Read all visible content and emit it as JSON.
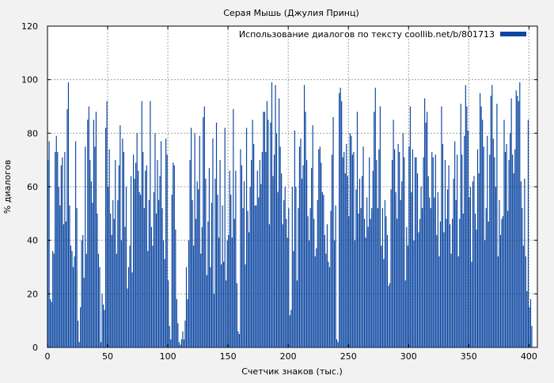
{
  "chart_data": {
    "type": "bar",
    "title": "Серая Мышь (Джулия Принц)",
    "xlabel": "Счетчик знаков (тыс.)",
    "ylabel": "% диалогов",
    "xlim": [
      0,
      407
    ],
    "ylim": [
      0,
      120
    ],
    "xticks": [
      0,
      50,
      100,
      150,
      200,
      250,
      300,
      350,
      400
    ],
    "yticks": [
      0,
      20,
      40,
      60,
      80,
      100,
      120
    ],
    "grid": true,
    "legend_position": "top-right",
    "bar_color": "#0d47a1",
    "series": [
      {
        "name": "Использование диалогов по тексту coollib.net/b/801713",
        "x_step": 1,
        "values": [
          70,
          77,
          18,
          17,
          36,
          35,
          73,
          79,
          73,
          60,
          53,
          68,
          71,
          46,
          73,
          47,
          89,
          99,
          53,
          38,
          36,
          30,
          34,
          77,
          52,
          10,
          2,
          15,
          40,
          42,
          26,
          75,
          35,
          85,
          90,
          70,
          62,
          54,
          85,
          75,
          88,
          50,
          35,
          30,
          2,
          20,
          16,
          14,
          82,
          92,
          60,
          74,
          50,
          42,
          55,
          48,
          70,
          35,
          55,
          68,
          83,
          40,
          78,
          73,
          45,
          60,
          22,
          30,
          38,
          64,
          28,
          72,
          63,
          69,
          80,
          66,
          58,
          57,
          92,
          73,
          52,
          66,
          68,
          36,
          55,
          92,
          45,
          38,
          58,
          80,
          50,
          70,
          55,
          64,
          77,
          52,
          40,
          33,
          78,
          72,
          25,
          8,
          3,
          57,
          69,
          68,
          44,
          18,
          9,
          2,
          1,
          3,
          6,
          3,
          10,
          30,
          18,
          40,
          70,
          82,
          55,
          38,
          80,
          48,
          62,
          59,
          79,
          35,
          45,
          86,
          90,
          63,
          27,
          47,
          67,
          30,
          54,
          78,
          20,
          63,
          84,
          57,
          41,
          70,
          31,
          53,
          32,
          82,
          25,
          40,
          42,
          66,
          57,
          41,
          89,
          48,
          66,
          24,
          6,
          5,
          74,
          68,
          52,
          62,
          31,
          82,
          51,
          43,
          60,
          70,
          85,
          76,
          53,
          53,
          66,
          56,
          70,
          61,
          73,
          88,
          88,
          73,
          92,
          85,
          46,
          84,
          99,
          64,
          72,
          98,
          80,
          58,
          93,
          75,
          65,
          46,
          55,
          60,
          48,
          41,
          52,
          12,
          14,
          60,
          36,
          81,
          60,
          25,
          52,
          75,
          78,
          63,
          68,
          98,
          88,
          70,
          49,
          40,
          52,
          67,
          83,
          48,
          34,
          37,
          55,
          74,
          75,
          69,
          58,
          57,
          42,
          35,
          46,
          32,
          30,
          51,
          72,
          86,
          40,
          53,
          3,
          2,
          95,
          97,
          92,
          71,
          73,
          65,
          76,
          64,
          49,
          80,
          79,
          72,
          73,
          40,
          59,
          88,
          50,
          63,
          52,
          64,
          75,
          48,
          41,
          56,
          45,
          71,
          48,
          52,
          66,
          88,
          97,
          70,
          52,
          74,
          90,
          38,
          52,
          33,
          55,
          49,
          42,
          23,
          24,
          59,
          70,
          85,
          74,
          58,
          48,
          76,
          73,
          55,
          62,
          80,
          71,
          25,
          45,
          38,
          75,
          90,
          58,
          74,
          40,
          71,
          71,
          65,
          43,
          48,
          60,
          52,
          71,
          93,
          84,
          88,
          64,
          56,
          52,
          73,
          71,
          56,
          72,
          42,
          58,
          34,
          47,
          90,
          76,
          43,
          70,
          48,
          59,
          68,
          46,
          35,
          48,
          63,
          77,
          55,
          72,
          34,
          48,
          91,
          72,
          50,
          79,
          98,
          90,
          81,
          56,
          60,
          32,
          62,
          64,
          50,
          44,
          74,
          65,
          95,
          90,
          85,
          75,
          40,
          52,
          79,
          47,
          72,
          94,
          98,
          78,
          71,
          60,
          91,
          34,
          55,
          42,
          48,
          49,
          85,
          73,
          76,
          51,
          70,
          80,
          93,
          72,
          65,
          74,
          96,
          94,
          92,
          99,
          62,
          52,
          38,
          63,
          34,
          21,
          85,
          15,
          18,
          8
        ]
      }
    ]
  }
}
